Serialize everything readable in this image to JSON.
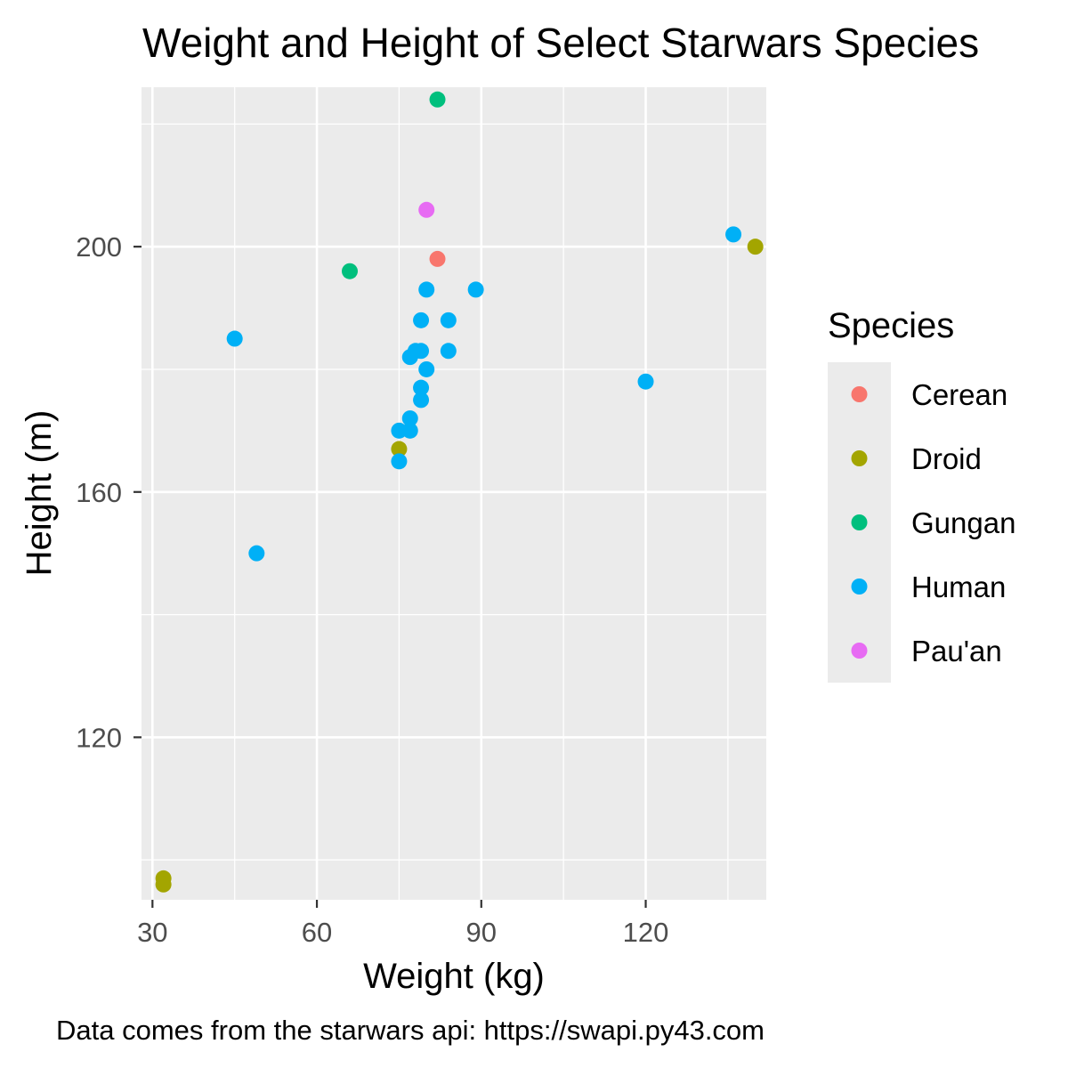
{
  "chart_data": {
    "type": "scatter",
    "title": "Weight and Height of Select Starwars Species",
    "xlabel": "Weight (kg)",
    "ylabel": "Height (m)",
    "caption": "Data comes from the starwars api: https://swapi.py43.com",
    "xlim": [
      28,
      142
    ],
    "ylim": [
      93.5,
      226
    ],
    "x_ticks": [
      30,
      60,
      90,
      120
    ],
    "y_ticks": [
      120,
      160,
      200
    ],
    "x_tick_labels": [
      "30",
      "60",
      "90",
      "120"
    ],
    "y_tick_labels": [
      "120",
      "160",
      "200"
    ],
    "grid": true,
    "legend": {
      "title": "Species",
      "position": "right",
      "entries": [
        "Cerean",
        "Droid",
        "Gungan",
        "Human",
        "Pau'an"
      ]
    },
    "series": [
      {
        "name": "Cerean",
        "color": "#F8766D",
        "points": [
          [
            82,
            198
          ]
        ]
      },
      {
        "name": "Droid",
        "color": "#A3A500",
        "points": [
          [
            75,
            167
          ],
          [
            32,
            97
          ],
          [
            32,
            96
          ],
          [
            140,
            200
          ]
        ]
      },
      {
        "name": "Gungan",
        "color": "#00BF7D",
        "points": [
          [
            66,
            196
          ],
          [
            82,
            224
          ]
        ]
      },
      {
        "name": "Human",
        "color": "#00B0F6",
        "points": [
          [
            77,
            172
          ],
          [
            136,
            202
          ],
          [
            49,
            150
          ],
          [
            120,
            178
          ],
          [
            75,
            165
          ],
          [
            84,
            183
          ],
          [
            77,
            182
          ],
          [
            84,
            188
          ],
          [
            80,
            180
          ],
          [
            89,
            193
          ],
          [
            45,
            185
          ],
          [
            80,
            193
          ],
          [
            79,
            188
          ],
          [
            79,
            183
          ],
          [
            78,
            183
          ],
          [
            79,
            177
          ],
          [
            79,
            175
          ],
          [
            75,
            170
          ],
          [
            77,
            170
          ]
        ]
      },
      {
        "name": "Pau'an",
        "color": "#E76BF3",
        "points": [
          [
            80,
            206
          ]
        ]
      }
    ]
  }
}
